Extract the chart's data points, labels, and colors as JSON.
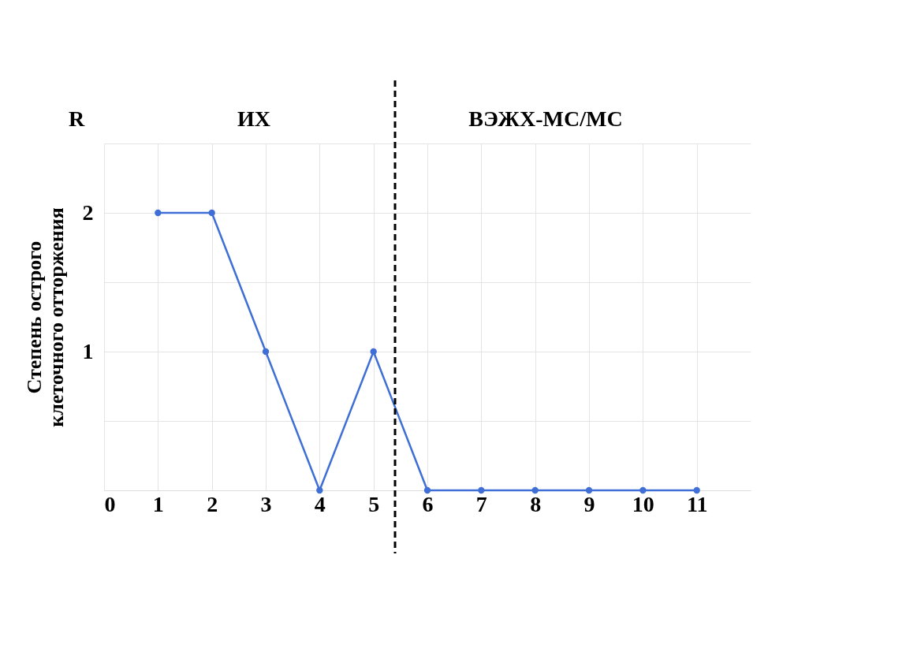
{
  "chart_data": {
    "type": "line",
    "ylabel": "Степень острого клеточного отторжения",
    "annotations": [
      "R",
      "ИХ",
      "ВЭЖХ-МС/МС"
    ],
    "x": [
      1,
      2,
      3,
      4,
      5,
      6,
      7,
      8,
      9,
      10,
      11
    ],
    "series": [
      {
        "color": "#3f6fd6",
        "values": [
          2,
          2,
          1,
          0,
          1,
          0,
          0,
          0,
          0,
          0,
          0
        ]
      }
    ],
    "xlim": [
      0,
      12
    ],
    "xticks": [
      0,
      1,
      2,
      3,
      4,
      5,
      6,
      7,
      8,
      9,
      10,
      11
    ],
    "ylim": [
      0,
      2.5
    ],
    "yticks": [
      {
        "value": 0,
        "label": null
      },
      {
        "value": 0.5,
        "label": null
      },
      1,
      {
        "value": 1.5,
        "label": null
      },
      2,
      {
        "value": 2.5,
        "label": null
      }
    ],
    "ref_lines": [
      {
        "axis": "x",
        "value": 5.4,
        "color": "#000000",
        "line_style": "dashed"
      }
    ],
    "grid": true,
    "marker": "circle",
    "line_style": "solid"
  }
}
